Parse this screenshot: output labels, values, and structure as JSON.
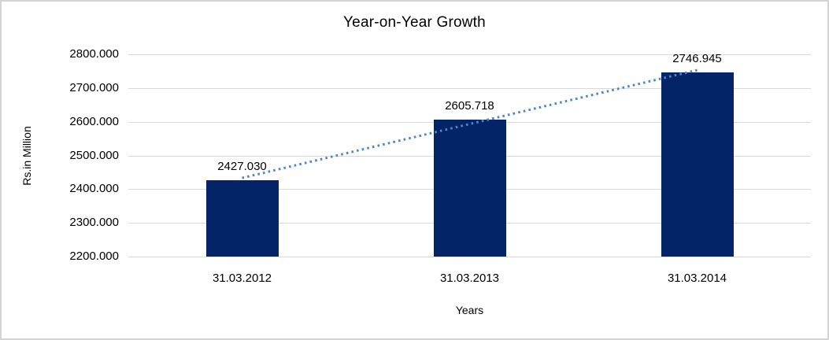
{
  "chart_data": {
    "type": "bar",
    "title": "Year-on-Year Growth",
    "xlabel": "Years",
    "ylabel": "Rs.in Million",
    "categories": [
      "31.03.2012",
      "31.03.2013",
      "31.03.2014"
    ],
    "series": [
      {
        "name": "Rs.in Million",
        "values": [
          2427.03,
          2605.718,
          2746.945
        ]
      }
    ],
    "value_labels": [
      "2427.030",
      "2605.718",
      "2746.945"
    ],
    "ylim": [
      2200,
      2800
    ],
    "ytick_step": 100,
    "ytick_labels": [
      "2800.000",
      "2700.000",
      "2600.000",
      "2500.000",
      "2400.000",
      "2300.000",
      "2200.000"
    ],
    "grid": true,
    "legend": false,
    "trendline": {
      "type": "linear",
      "style": "dotted"
    },
    "colors": {
      "bar": "#032568",
      "gridline": "#d9d9d9",
      "trendline": "#4e86c8",
      "text": "#000000",
      "border": "#d4d4d4"
    }
  }
}
